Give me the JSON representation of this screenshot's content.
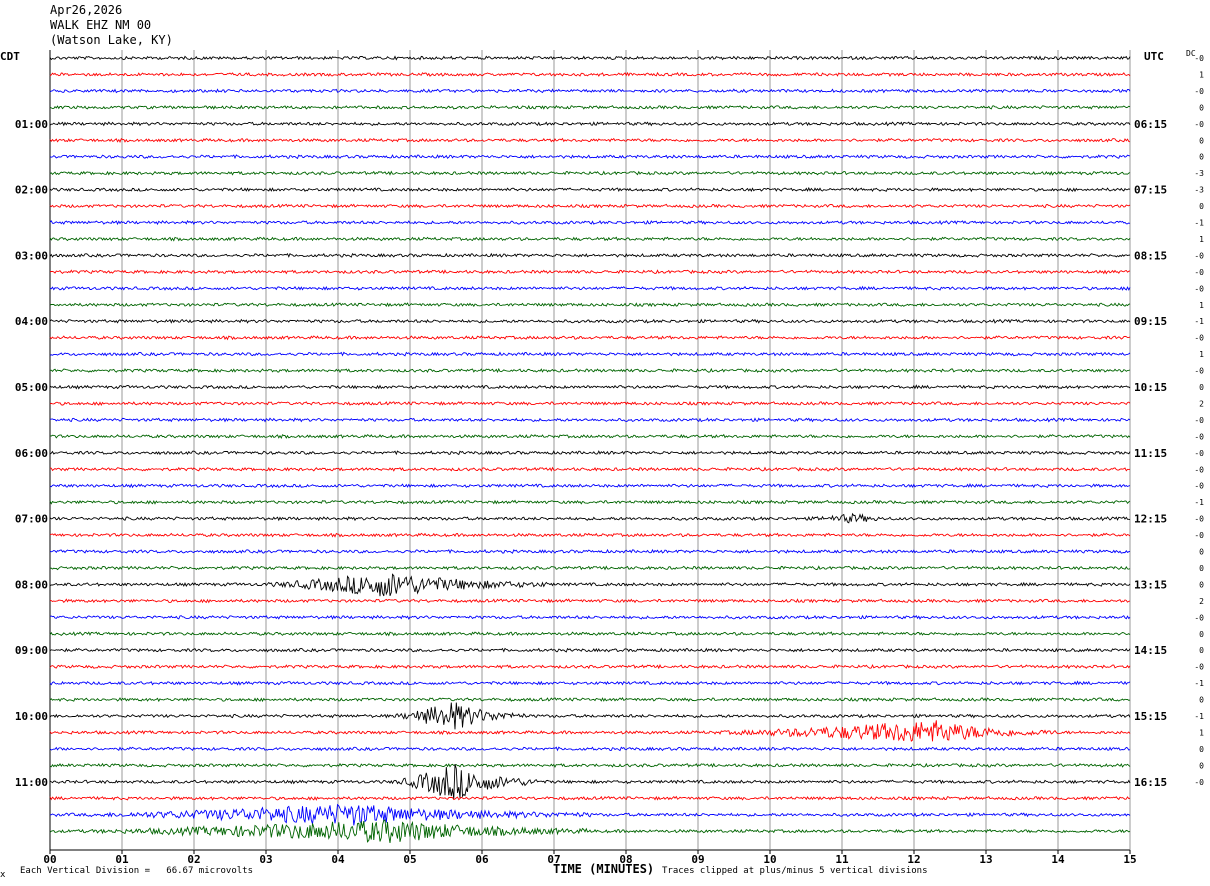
{
  "header": {
    "date": "Apr26,2026",
    "station": "WALK EHZ NM 00",
    "location": "(Watson Lake, KY)"
  },
  "left_timezone": "CDT",
  "right_timezone": "UTC",
  "dc_label": "DC",
  "footer": {
    "scale_note": "Each Vertical Division =   66.67 microvolts",
    "axis_title": "TIME (MINUTES)",
    "clip_note": "Traces clipped at plus/minus 5 vertical divisions",
    "corner_mark": "x"
  },
  "colors": {
    "trace_cycle": [
      "#000000",
      "#ff0000",
      "#0000ff",
      "#006400"
    ],
    "grid": "#808080"
  },
  "chart_data": {
    "type": "line",
    "title": "WALK EHZ NM 00",
    "xlabel": "TIME (MINUTES)",
    "xlim": [
      0,
      15
    ],
    "x_ticks": [
      "00",
      "01",
      "02",
      "03",
      "04",
      "05",
      "06",
      "07",
      "08",
      "09",
      "10",
      "11",
      "12",
      "13",
      "14",
      "15"
    ],
    "left_hour_labels": [
      "01:00",
      "02:00",
      "03:00",
      "04:00",
      "05:00",
      "06:00",
      "07:00",
      "08:00",
      "09:00",
      "10:00",
      "11:00"
    ],
    "right_hour_labels": [
      "06:15",
      "07:15",
      "08:15",
      "09:15",
      "10:15",
      "11:15",
      "12:15",
      "13:15",
      "14:15",
      "15:15",
      "16:15"
    ],
    "trace_count": 48,
    "dc_offsets": [
      "-0",
      "1",
      "-0",
      "0",
      "-0",
      "0",
      "0",
      "-3",
      "-3",
      "0",
      "-1",
      "1",
      "-0",
      "-0",
      "-0",
      "1",
      "-1",
      "-0",
      "1",
      "-0",
      "0",
      "2",
      "-0",
      "-0",
      "-0",
      "-0",
      "-0",
      "-1",
      "-0",
      "-0",
      "0",
      "0",
      "0",
      "2",
      "-0",
      "0",
      "0",
      "-0",
      "-1",
      "0",
      "-1",
      "1",
      "0",
      "0",
      "-0",
      "",
      "",
      ""
    ],
    "events": [
      {
        "trace": 32,
        "start_min": 2.8,
        "end_min": 6.9,
        "peak_min": 4.7,
        "amplitude": 12
      },
      {
        "trace": 40,
        "start_min": 4.7,
        "end_min": 6.6,
        "peak_min": 5.6,
        "amplitude": 14
      },
      {
        "trace": 41,
        "start_min": 9.0,
        "end_min": 14.0,
        "peak_min": 12.3,
        "amplitude": 11
      },
      {
        "trace": 44,
        "start_min": 4.7,
        "end_min": 6.8,
        "peak_min": 5.6,
        "amplitude": 18
      },
      {
        "trace": 46,
        "start_min": 0.2,
        "end_min": 7.5,
        "peak_min": 4.2,
        "amplitude": 10
      },
      {
        "trace": 47,
        "start_min": 0.2,
        "end_min": 7.5,
        "peak_min": 4.8,
        "amplitude": 11
      },
      {
        "trace": 28,
        "start_min": 10.5,
        "end_min": 11.6,
        "peak_min": 11.2,
        "amplitude": 4
      }
    ]
  }
}
